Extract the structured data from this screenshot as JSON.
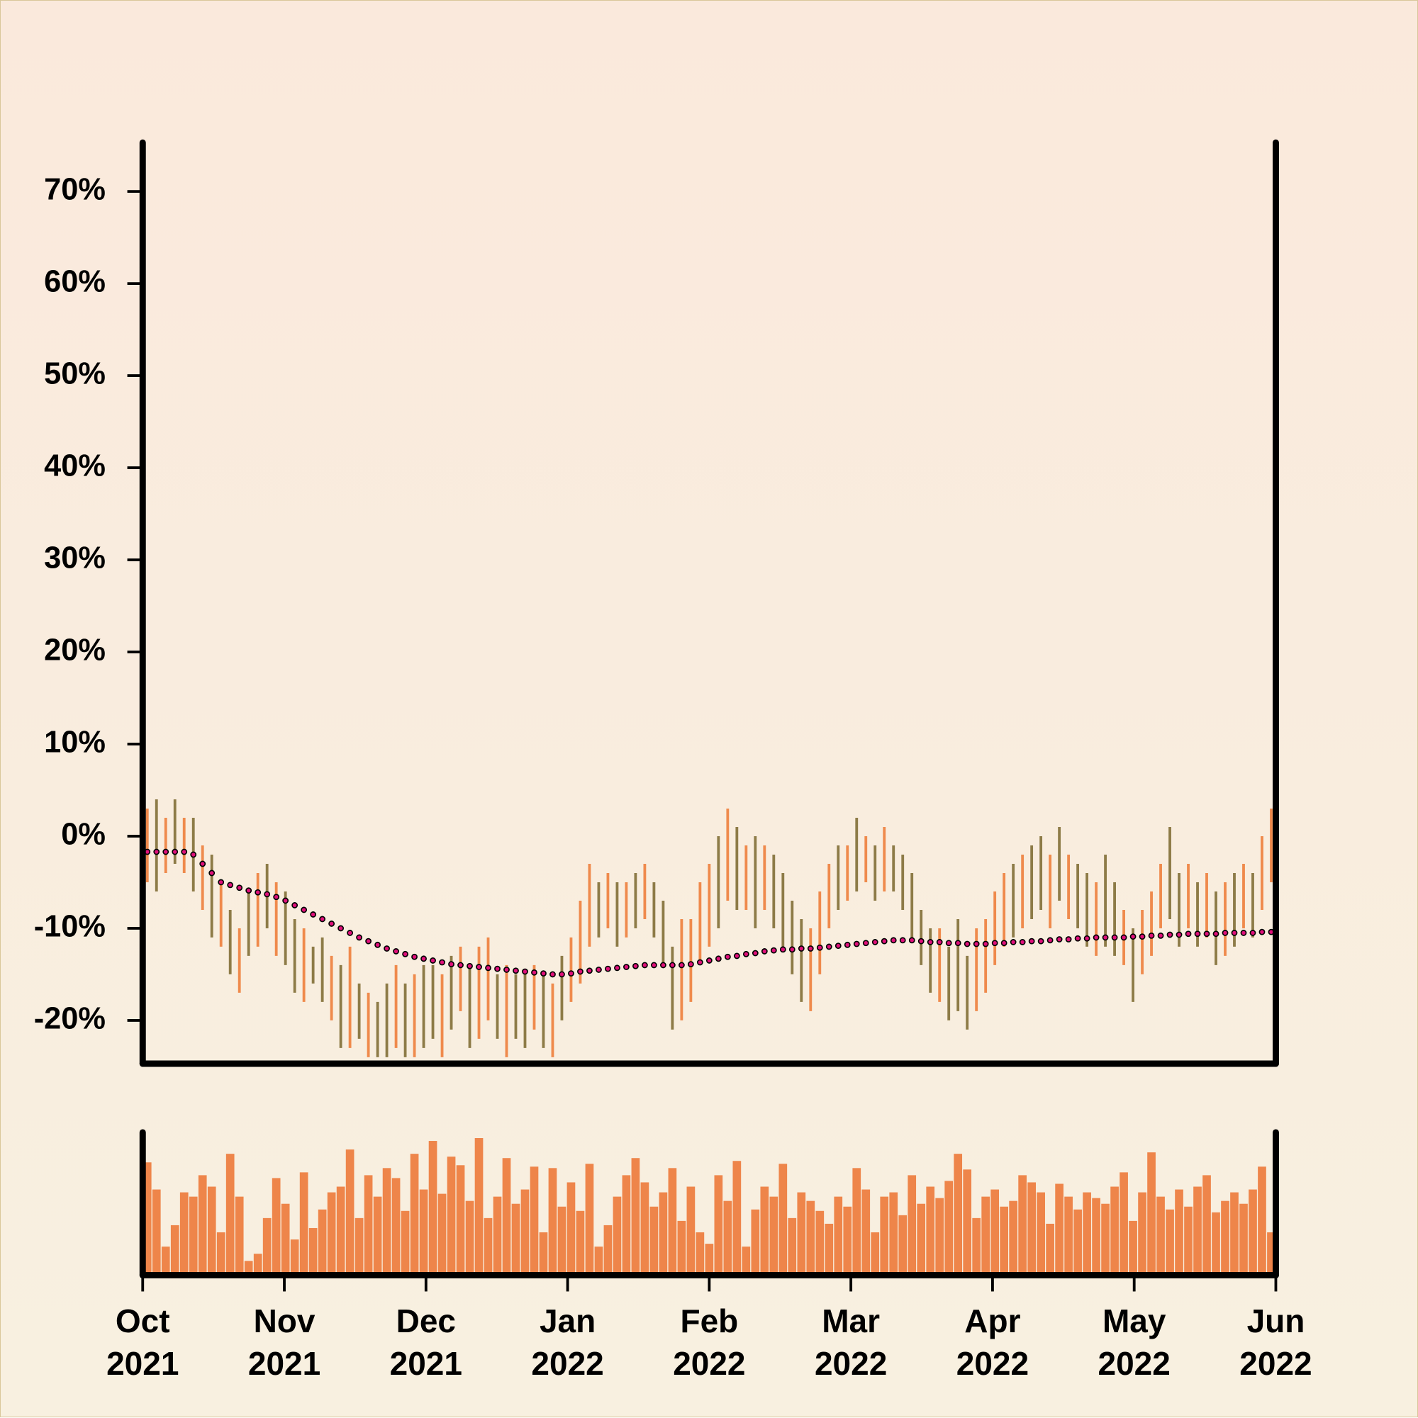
{
  "chart_data": {
    "type": "ohlc",
    "xlim": [
      "2021-10",
      "2022-06"
    ],
    "xticks": [
      {
        "value": "2021-10",
        "label": "Oct\n2021"
      },
      {
        "value": "2021-11",
        "label": "Nov\n2021"
      },
      {
        "value": "2021-12",
        "label": "Dec\n2021"
      },
      {
        "value": "2022-01",
        "label": "Jan\n2022"
      },
      {
        "value": "2022-02",
        "label": "Feb\n2022"
      },
      {
        "value": "2022-03",
        "label": "Mar\n2022"
      },
      {
        "value": "2022-04",
        "label": "Apr\n2022"
      },
      {
        "value": "2022-05",
        "label": "May\n2022"
      },
      {
        "value": "2022-06",
        "label": "Jun\n2022"
      }
    ],
    "ylim": [
      -24.7,
      75.3
    ],
    "yticks": [
      {
        "value": -20,
        "label": "-20%"
      },
      {
        "value": -10,
        "label": "-10%"
      },
      {
        "value": 0,
        "label": "0%"
      },
      {
        "value": 10,
        "label": "10%"
      },
      {
        "value": 20,
        "label": "20%"
      },
      {
        "value": 30,
        "label": "30%"
      },
      {
        "value": 40,
        "label": "40%"
      },
      {
        "value": 50,
        "label": "50%"
      },
      {
        "value": 60,
        "label": "60%"
      },
      {
        "value": 70,
        "label": "70%"
      }
    ],
    "up_color": "#ef8a4c",
    "down_color": "#8d7b47",
    "low": [
      -5,
      -6,
      -4,
      -3,
      -4,
      -6,
      -8,
      -11,
      -12,
      -15,
      -17,
      -13,
      -12,
      -10,
      -13,
      -14,
      -17,
      -18,
      -16,
      -18,
      -20,
      -23,
      -23,
      -22,
      -24,
      -24,
      -24,
      -23,
      -24,
      -24,
      -23,
      -22,
      -24,
      -21,
      -19,
      -23,
      -22,
      -20,
      -22,
      -24,
      -22,
      -23,
      -21,
      -23,
      -24,
      -20,
      -18,
      -16,
      -12,
      -11,
      -10,
      -12,
      -11,
      -10,
      -9,
      -11,
      -14,
      -21,
      -20,
      -18,
      -14,
      -12,
      -10,
      -7,
      -8,
      -8,
      -10,
      -8,
      -10,
      -12,
      -15,
      -18,
      -19,
      -15,
      -10,
      -8,
      -7,
      -6,
      -5,
      -7,
      -6,
      -6,
      -8,
      -11,
      -14,
      -17,
      -18,
      -20,
      -19,
      -21,
      -19,
      -17,
      -14,
      -12,
      -11,
      -10,
      -9,
      -8,
      -10,
      -7,
      -9,
      -10,
      -12,
      -13,
      -12,
      -13,
      -14,
      -18,
      -15,
      -13,
      -10,
      -9,
      -12,
      -10,
      -12,
      -11,
      -14,
      -13,
      -12,
      -10,
      -11,
      -8,
      -5
    ],
    "high": [
      3,
      4,
      2,
      4,
      2,
      2,
      -1,
      -2,
      -5,
      -8,
      -10,
      -6,
      -4,
      -3,
      -5,
      -6,
      -9,
      -10,
      -12,
      -11,
      -13,
      -14,
      -12,
      -16,
      -17,
      -18,
      -16,
      -14,
      -16,
      -15,
      -14,
      -14,
      -15,
      -13,
      -12,
      -14,
      -12,
      -11,
      -15,
      -14,
      -15,
      -15,
      -14,
      -15,
      -16,
      -13,
      -11,
      -7,
      -3,
      -5,
      -4,
      -5,
      -5,
      -4,
      -3,
      -5,
      -7,
      -12,
      -9,
      -9,
      -5,
      -3,
      0,
      3,
      1,
      -1,
      0,
      -1,
      -2,
      -4,
      -7,
      -9,
      -10,
      -6,
      -3,
      -1,
      -1,
      2,
      0,
      -1,
      1,
      -1,
      -2,
      -4,
      -8,
      -10,
      -10,
      -12,
      -9,
      -13,
      -10,
      -9,
      -6,
      -4,
      -3,
      -2,
      -1,
      0,
      -2,
      1,
      -2,
      -3,
      -4,
      -5,
      -2,
      -5,
      -8,
      -10,
      -8,
      -6,
      -3,
      1,
      -4,
      -3,
      -5,
      -4,
      -6,
      -5,
      -4,
      -3,
      -4,
      0,
      3
    ],
    "rising": [
      1,
      0,
      1,
      0,
      1,
      0,
      1,
      0,
      1,
      0,
      1,
      0,
      1,
      0,
      1,
      0,
      0,
      1,
      0,
      0,
      1,
      0,
      1,
      0,
      1,
      0,
      0,
      1,
      0,
      1,
      0,
      0,
      1,
      0,
      1,
      0,
      1,
      1,
      0,
      1,
      0,
      0,
      1,
      0,
      1,
      0,
      1,
      1,
      1,
      0,
      1,
      0,
      1,
      0,
      1,
      0,
      0,
      0,
      1,
      1,
      1,
      1,
      0,
      1,
      0,
      1,
      0,
      1,
      0,
      0,
      0,
      0,
      1,
      1,
      1,
      0,
      1,
      0,
      1,
      0,
      1,
      0,
      0,
      0,
      0,
      0,
      1,
      0,
      0,
      0,
      1,
      1,
      1,
      1,
      0,
      1,
      0,
      0,
      1,
      0,
      1,
      0,
      0,
      1,
      0,
      0,
      1,
      0,
      1,
      1,
      1,
      0,
      0,
      1,
      0,
      1,
      0,
      1,
      0,
      1,
      0,
      1,
      1
    ],
    "ma_color": "#e0107a",
    "ma": [
      -1.7,
      -1.7,
      -1.7,
      -1.7,
      -1.7,
      -2,
      -3,
      -4,
      -5,
      -5.3,
      -5.6,
      -5.9,
      -6.1,
      -6.3,
      -6.6,
      -7,
      -7.5,
      -8,
      -8.5,
      -9,
      -9.5,
      -10,
      -10.5,
      -11,
      -11.4,
      -11.8,
      -12.2,
      -12.5,
      -12.8,
      -13.1,
      -13.3,
      -13.5,
      -13.7,
      -13.9,
      -14,
      -14.1,
      -14.2,
      -14.3,
      -14.4,
      -14.5,
      -14.6,
      -14.7,
      -14.8,
      -14.9,
      -15,
      -15,
      -14.9,
      -14.7,
      -14.6,
      -14.5,
      -14.4,
      -14.3,
      -14.2,
      -14.1,
      -14,
      -14,
      -14,
      -14,
      -14,
      -13.9,
      -13.7,
      -13.5,
      -13.3,
      -13.1,
      -13,
      -12.8,
      -12.7,
      -12.5,
      -12.4,
      -12.3,
      -12.3,
      -12.2,
      -12.2,
      -12.1,
      -12,
      -11.9,
      -11.8,
      -11.7,
      -11.6,
      -11.5,
      -11.4,
      -11.3,
      -11.3,
      -11.3,
      -11.4,
      -11.5,
      -11.5,
      -11.6,
      -11.6,
      -11.7,
      -11.7,
      -11.7,
      -11.6,
      -11.6,
      -11.5,
      -11.5,
      -11.4,
      -11.4,
      -11.3,
      -11.2,
      -11.2,
      -11.1,
      -11.1,
      -11,
      -11,
      -11,
      -11,
      -10.9,
      -10.9,
      -10.8,
      -10.8,
      -10.7,
      -10.7,
      -10.6,
      -10.6,
      -10.6,
      -10.6,
      -10.5,
      -10.5,
      -10.5,
      -10.5,
      -10.4,
      -10.4
    ],
    "volume_color": "#ee854a",
    "volume_ylim": [
      0,
      100
    ],
    "volume": [
      79,
      60,
      20,
      35,
      58,
      55,
      70,
      62,
      30,
      85,
      55,
      10,
      15,
      40,
      68,
      50,
      25,
      72,
      33,
      46,
      58,
      62,
      88,
      40,
      70,
      55,
      75,
      68,
      45,
      85,
      60,
      94,
      57,
      83,
      77,
      52,
      96,
      40,
      55,
      82,
      50,
      60,
      76,
      30,
      75,
      48,
      65,
      45,
      78,
      20,
      35,
      55,
      70,
      82,
      65,
      48,
      58,
      75,
      38,
      62,
      30,
      22,
      70,
      52,
      80,
      20,
      46,
      62,
      55,
      78,
      40,
      58,
      52,
      45,
      36,
      55,
      48,
      75,
      60,
      30,
      55,
      58,
      42,
      70,
      50,
      62,
      54,
      66,
      85,
      74,
      40,
      55,
      60,
      48,
      52,
      70,
      65,
      58,
      36,
      64,
      55,
      46,
      58,
      54,
      50,
      62,
      72,
      38,
      58,
      86,
      55,
      46,
      60,
      48,
      62,
      70,
      44,
      52,
      58,
      50,
      60,
      76,
      30
    ]
  }
}
